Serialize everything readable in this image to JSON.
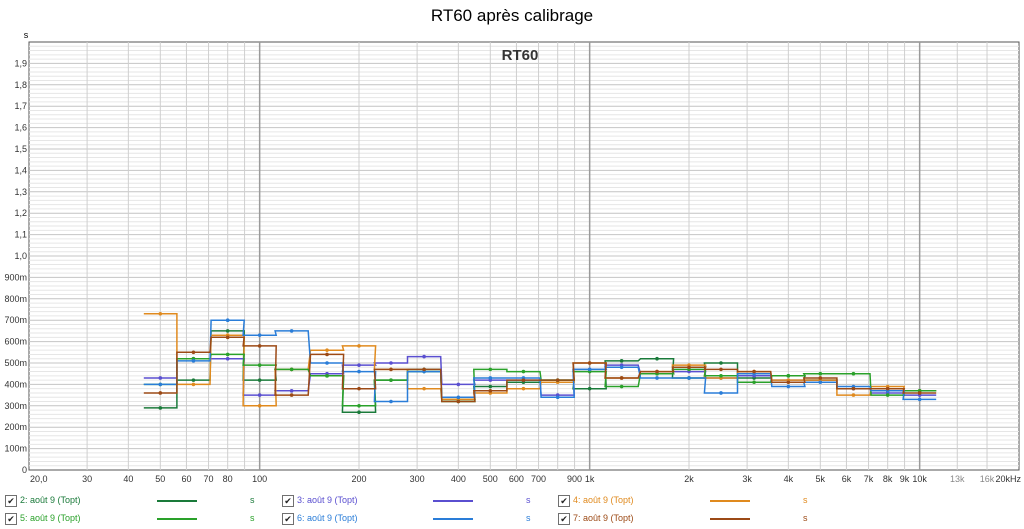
{
  "title": "RT60 après calibrage",
  "chart_data": {
    "type": "line",
    "step": true,
    "inner_title": "RT60",
    "y_unit_label": "s",
    "x_scale": "log",
    "xlim": [
      20,
      20000
    ],
    "ylim": [
      0,
      2.0
    ],
    "grid": true,
    "x_tick_labels": [
      {
        "v": 20,
        "t": "20,0"
      },
      {
        "v": 30,
        "t": "30"
      },
      {
        "v": 40,
        "t": "40"
      },
      {
        "v": 50,
        "t": "50"
      },
      {
        "v": 60,
        "t": "60"
      },
      {
        "v": 70,
        "t": "70"
      },
      {
        "v": 80,
        "t": "80"
      },
      {
        "v": 100,
        "t": "100"
      },
      {
        "v": 200,
        "t": "200"
      },
      {
        "v": 300,
        "t": "300"
      },
      {
        "v": 400,
        "t": "400"
      },
      {
        "v": 500,
        "t": "500"
      },
      {
        "v": 600,
        "t": "600"
      },
      {
        "v": 700,
        "t": "700"
      },
      {
        "v": 900,
        "t": "900"
      },
      {
        "v": 1000,
        "t": "1k"
      },
      {
        "v": 2000,
        "t": "2k"
      },
      {
        "v": 3000,
        "t": "3k"
      },
      {
        "v": 4000,
        "t": "4k"
      },
      {
        "v": 5000,
        "t": "5k"
      },
      {
        "v": 6000,
        "t": "6k"
      },
      {
        "v": 7000,
        "t": "7k"
      },
      {
        "v": 8000,
        "t": "8k"
      },
      {
        "v": 9000,
        "t": "9k"
      },
      {
        "v": 10000,
        "t": "10k"
      },
      {
        "v": 13000,
        "t": "13k"
      },
      {
        "v": 16000,
        "t": "16k"
      },
      {
        "v": 20000,
        "t": "20kHz"
      }
    ],
    "y_tick_labels": [
      {
        "v": 0,
        "t": "0"
      },
      {
        "v": 0.1,
        "t": "100m"
      },
      {
        "v": 0.2,
        "t": "200m"
      },
      {
        "v": 0.3,
        "t": "300m"
      },
      {
        "v": 0.4,
        "t": "400m"
      },
      {
        "v": 0.5,
        "t": "500m"
      },
      {
        "v": 0.6,
        "t": "600m"
      },
      {
        "v": 0.7,
        "t": "700m"
      },
      {
        "v": 0.8,
        "t": "800m"
      },
      {
        "v": 0.9,
        "t": "900m"
      },
      {
        "v": 1.0,
        "t": "1,0"
      },
      {
        "v": 1.1,
        "t": "1,1"
      },
      {
        "v": 1.2,
        "t": "1,2"
      },
      {
        "v": 1.3,
        "t": "1,3"
      },
      {
        "v": 1.4,
        "t": "1,4"
      },
      {
        "v": 1.5,
        "t": "1,5"
      },
      {
        "v": 1.6,
        "t": "1,6"
      },
      {
        "v": 1.7,
        "t": "1,7"
      },
      {
        "v": 1.8,
        "t": "1,8"
      },
      {
        "v": 1.9,
        "t": "1,9"
      }
    ],
    "x": [
      50,
      63,
      80,
      100,
      125,
      160,
      200,
      250,
      315,
      400,
      500,
      630,
      800,
      1000,
      1250,
      1600,
      2000,
      2500,
      3150,
      4000,
      5000,
      6300,
      8000,
      10000
    ],
    "series": [
      {
        "name": "2: août 9 (Topt)",
        "color": "#1a7a3a",
        "values": [
          0.29,
          0.42,
          0.65,
          0.42,
          0.47,
          0.44,
          0.27,
          0.42,
          0.47,
          0.33,
          0.39,
          0.41,
          0.42,
          0.38,
          0.51,
          0.52,
          0.43,
          0.5,
          0.43,
          0.44,
          0.42,
          0.38,
          0.37,
          0.37
        ]
      },
      {
        "name": "3: août 9 (Topt)",
        "color": "#5a4fd0",
        "values": [
          0.43,
          0.52,
          0.52,
          0.35,
          0.37,
          0.45,
          0.49,
          0.5,
          0.53,
          0.4,
          0.42,
          0.42,
          0.35,
          0.47,
          0.49,
          0.45,
          0.46,
          0.43,
          0.44,
          0.42,
          0.42,
          0.38,
          0.36,
          0.35
        ]
      },
      {
        "name": "4: août 9 (Topt)",
        "color": "#e08a1e",
        "values": [
          0.73,
          0.4,
          0.63,
          0.3,
          0.47,
          0.56,
          0.58,
          0.47,
          0.38,
          0.33,
          0.36,
          0.38,
          0.41,
          0.5,
          0.43,
          0.46,
          0.49,
          0.43,
          0.46,
          0.42,
          0.42,
          0.35,
          0.39,
          0.37
        ]
      },
      {
        "name": "5: août 9 (Topt)",
        "color": "#2aa12a",
        "values": [
          0.4,
          0.52,
          0.54,
          0.49,
          0.47,
          0.44,
          0.3,
          0.42,
          0.46,
          0.32,
          0.47,
          0.46,
          0.42,
          0.46,
          0.39,
          0.45,
          0.47,
          0.44,
          0.41,
          0.44,
          0.45,
          0.45,
          0.35,
          0.37
        ]
      },
      {
        "name": "6: août 9 (Topt)",
        "color": "#2a7dd8",
        "values": [
          0.4,
          0.51,
          0.7,
          0.63,
          0.65,
          0.5,
          0.46,
          0.32,
          0.46,
          0.34,
          0.43,
          0.43,
          0.34,
          0.47,
          0.48,
          0.43,
          0.43,
          0.36,
          0.45,
          0.39,
          0.41,
          0.39,
          0.37,
          0.33
        ]
      },
      {
        "name": "7: août 9 (Topt)",
        "color": "#9c4a16",
        "values": [
          0.36,
          0.55,
          0.62,
          0.58,
          0.35,
          0.54,
          0.38,
          0.47,
          0.47,
          0.32,
          0.37,
          0.42,
          0.42,
          0.5,
          0.43,
          0.46,
          0.48,
          0.47,
          0.46,
          0.41,
          0.43,
          0.38,
          0.38,
          0.36
        ]
      }
    ]
  },
  "legend": {
    "unit": "s",
    "check_mark": "✔"
  }
}
